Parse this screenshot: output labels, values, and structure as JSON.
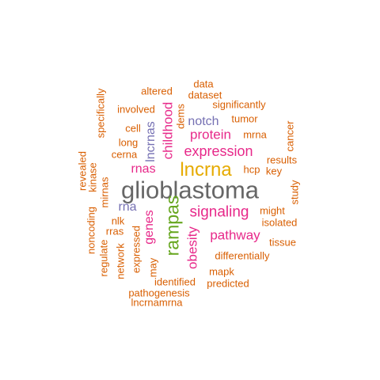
{
  "colors": {
    "orange": "#D95F02",
    "magenta": "#E7298A",
    "purple": "#7570B3",
    "green": "#66A61E",
    "gold": "#E6AB02",
    "gray": "#666666"
  },
  "words": [
    {
      "id": "glioblastoma",
      "text": "glioblastoma",
      "color": "gray"
    },
    {
      "id": "lncrna",
      "text": "lncrna",
      "color": "gold"
    },
    {
      "id": "rampas",
      "text": "rampas",
      "color": "green"
    },
    {
      "id": "signaling",
      "text": "signaling",
      "color": "magenta"
    },
    {
      "id": "expression",
      "text": "expression",
      "color": "magenta"
    },
    {
      "id": "pathway",
      "text": "pathway",
      "color": "magenta"
    },
    {
      "id": "childhood",
      "text": "childhood",
      "color": "magenta"
    },
    {
      "id": "obesity",
      "text": "obesity",
      "color": "magenta"
    },
    {
      "id": "protein",
      "text": "protein",
      "color": "magenta"
    },
    {
      "id": "rnas",
      "text": "rnas",
      "color": "magenta"
    },
    {
      "id": "genes",
      "text": "genes",
      "color": "magenta"
    },
    {
      "id": "notch",
      "text": "notch",
      "color": "purple"
    },
    {
      "id": "lncrnas",
      "text": "lncrnas",
      "color": "purple"
    },
    {
      "id": "rna",
      "text": "rna",
      "color": "purple"
    },
    {
      "id": "data",
      "text": "data",
      "color": "orange"
    },
    {
      "id": "dataset",
      "text": "dataset",
      "color": "orange"
    },
    {
      "id": "altered",
      "text": "altered",
      "color": "orange"
    },
    {
      "id": "significantly",
      "text": "significantly",
      "color": "orange"
    },
    {
      "id": "involved",
      "text": "involved",
      "color": "orange"
    },
    {
      "id": "specifically",
      "text": "specifically",
      "color": "orange"
    },
    {
      "id": "dems",
      "text": "dems",
      "color": "orange"
    },
    {
      "id": "tumor",
      "text": "tumor",
      "color": "orange"
    },
    {
      "id": "cell",
      "text": "cell",
      "color": "orange"
    },
    {
      "id": "mrna",
      "text": "mrna",
      "color": "orange"
    },
    {
      "id": "cancer",
      "text": "cancer",
      "color": "orange"
    },
    {
      "id": "long",
      "text": "long",
      "color": "orange"
    },
    {
      "id": "cerna",
      "text": "cerna",
      "color": "orange"
    },
    {
      "id": "results",
      "text": "results",
      "color": "orange"
    },
    {
      "id": "hcp",
      "text": "hcp",
      "color": "orange"
    },
    {
      "id": "key",
      "text": "key",
      "color": "orange"
    },
    {
      "id": "revealed",
      "text": "revealed",
      "color": "orange"
    },
    {
      "id": "kinase",
      "text": "kinase",
      "color": "orange"
    },
    {
      "id": "mirnas",
      "text": "mirnas",
      "color": "orange"
    },
    {
      "id": "study",
      "text": "study",
      "color": "orange"
    },
    {
      "id": "might",
      "text": "might",
      "color": "orange"
    },
    {
      "id": "isolated",
      "text": "isolated",
      "color": "orange"
    },
    {
      "id": "noncoding",
      "text": "noncoding",
      "color": "orange"
    },
    {
      "id": "nlk",
      "text": "nlk",
      "color": "orange"
    },
    {
      "id": "rras",
      "text": "rras",
      "color": "orange"
    },
    {
      "id": "tissue",
      "text": "tissue",
      "color": "orange"
    },
    {
      "id": "regulate",
      "text": "regulate",
      "color": "orange"
    },
    {
      "id": "network",
      "text": "network",
      "color": "orange"
    },
    {
      "id": "expressed",
      "text": "expressed",
      "color": "orange"
    },
    {
      "id": "differentially",
      "text": "differentially",
      "color": "orange"
    },
    {
      "id": "may",
      "text": "may",
      "color": "orange"
    },
    {
      "id": "mapk",
      "text": "mapk",
      "color": "orange"
    },
    {
      "id": "identified",
      "text": "identified",
      "color": "orange"
    },
    {
      "id": "predicted",
      "text": "predicted",
      "color": "orange"
    },
    {
      "id": "pathogenesis",
      "text": "pathogenesis",
      "color": "orange"
    },
    {
      "id": "lncrnamrna",
      "text": "lncrnamrna",
      "color": "orange"
    }
  ]
}
